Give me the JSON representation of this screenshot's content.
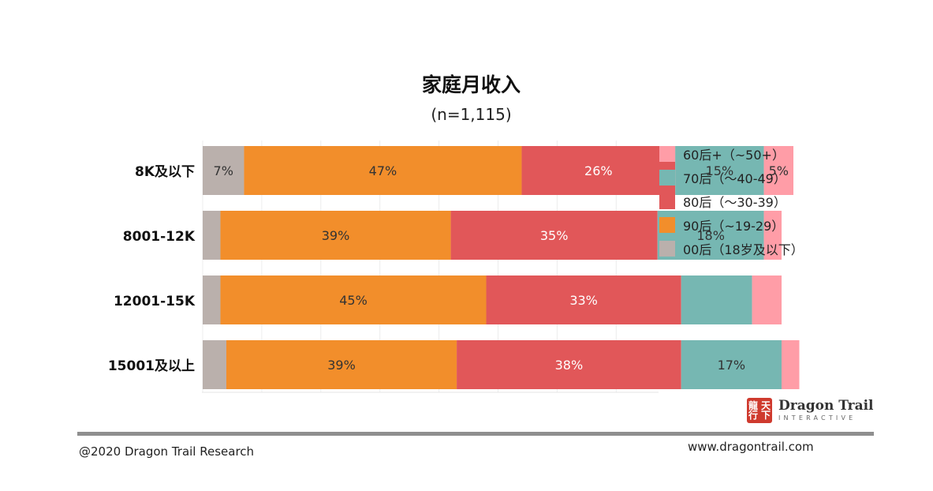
{
  "chart_data": {
    "type": "bar",
    "orientation": "horizontal",
    "stacked": true,
    "title": "家庭月收入",
    "subtitle": "(n=1,115)",
    "categories": [
      "8K及以下",
      "8001-12K",
      "12001-15K",
      "15001及以上"
    ],
    "series": [
      {
        "name": "00后（18岁及以下）",
        "color": "#bab0ac",
        "values": [
          7,
          3,
          3,
          4
        ],
        "labels": [
          "7%",
          "",
          "",
          ""
        ]
      },
      {
        "name": "90后（~19-29）",
        "color": "#f28e2b",
        "values": [
          47,
          39,
          45,
          39
        ],
        "labels": [
          "47%",
          "39%",
          "45%",
          "39%"
        ]
      },
      {
        "name": "80后（～30-39）",
        "color": "#e15759",
        "values": [
          26,
          35,
          33,
          38
        ],
        "labels": [
          "26%",
          "35%",
          "33%",
          "38%"
        ]
      },
      {
        "name": "70后（～40-49）",
        "color": "#76b7b2",
        "values": [
          15,
          18,
          12,
          17
        ],
        "labels": [
          "15%",
          "18%",
          "",
          "17%"
        ]
      },
      {
        "name": "60后+（~50+）",
        "color": "#ff9da7",
        "values": [
          5,
          3,
          5,
          3
        ],
        "labels": [
          "5%",
          "",
          "",
          ""
        ]
      }
    ],
    "legend_order": [
      "60后+（~50+）",
      "70后（～40-49）",
      "80后（～30-39）",
      "90后（~19-29）",
      "00后（18岁及以下）"
    ],
    "legend_position": "right",
    "grid": "vertical"
  },
  "footer": {
    "copyright": "@2020 Dragon Trail Research",
    "website": "www.dragontrail.com"
  },
  "logo": {
    "mark": "龍行天下",
    "name": "Dragon Trail",
    "tagline": "INTERACTIVE"
  },
  "colors": {
    "rule": "#8f8f8f",
    "logo": "#cf3a2e"
  }
}
